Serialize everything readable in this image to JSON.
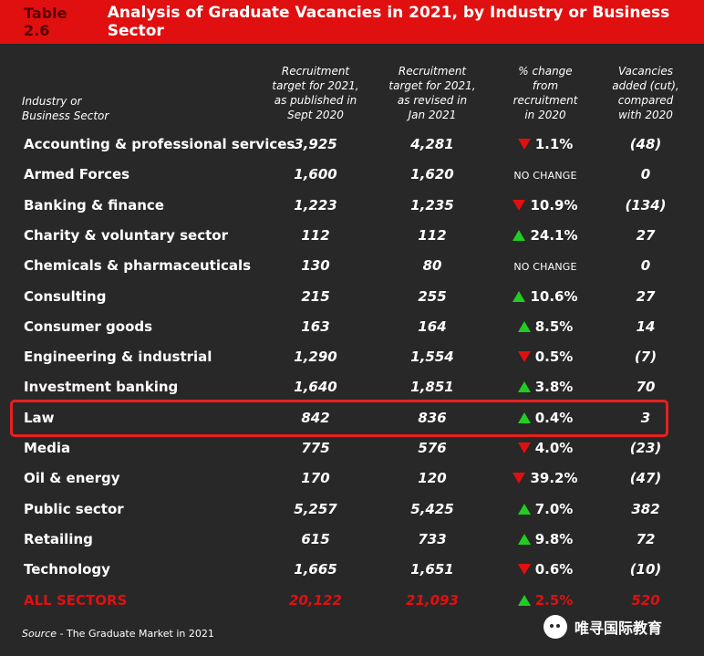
{
  "title": {
    "number": "Table 2.6",
    "text": "Analysis of Graduate Vacancies in 2021, by Industry or Business Sector"
  },
  "headers": {
    "industry": [
      "Industry or",
      "Business Sector"
    ],
    "published": [
      "Recruitment",
      "target for 2021,",
      "as published in",
      "Sept 2020"
    ],
    "revised": [
      "Recruitment",
      "target for 2021,",
      "as revised in",
      "Jan 2021"
    ],
    "change": [
      "% change",
      "from",
      "recruitment",
      "in 2020"
    ],
    "vacancies": [
      "Vacancies",
      "added (cut),",
      "compared",
      "with 2020"
    ]
  },
  "rows": [
    {
      "name": "Accounting & professional services",
      "published": "3,925",
      "revised": "4,281",
      "direction": "down",
      "change": "1.1%",
      "vacancies": "(48)"
    },
    {
      "name": "Armed Forces",
      "published": "1,600",
      "revised": "1,620",
      "direction": "none",
      "change": "NO CHANGE",
      "vacancies": "0"
    },
    {
      "name": "Banking & finance",
      "published": "1,223",
      "revised": "1,235",
      "direction": "down",
      "change": "10.9%",
      "vacancies": "(134)"
    },
    {
      "name": "Charity & voluntary sector",
      "published": "112",
      "revised": "112",
      "direction": "up",
      "change": "24.1%",
      "vacancies": "27"
    },
    {
      "name": "Chemicals & pharmaceuticals",
      "published": "130",
      "revised": "80",
      "direction": "none",
      "change": "NO CHANGE",
      "vacancies": "0"
    },
    {
      "name": "Consulting",
      "published": "215",
      "revised": "255",
      "direction": "up",
      "change": "10.6%",
      "vacancies": "27"
    },
    {
      "name": "Consumer goods",
      "published": "163",
      "revised": "164",
      "direction": "up",
      "change": "8.5%",
      "vacancies": "14"
    },
    {
      "name": "Engineering & industrial",
      "published": "1,290",
      "revised": "1,554",
      "direction": "down",
      "change": "0.5%",
      "vacancies": "(7)"
    },
    {
      "name": "Investment banking",
      "published": "1,640",
      "revised": "1,851",
      "direction": "up",
      "change": "3.8%",
      "vacancies": "70"
    },
    {
      "name": "Law",
      "published": "842",
      "revised": "836",
      "direction": "up",
      "change": "0.4%",
      "vacancies": "3",
      "highlighted": true
    },
    {
      "name": "Media",
      "published": "775",
      "revised": "576",
      "direction": "down",
      "change": "4.0%",
      "vacancies": "(23)"
    },
    {
      "name": "Oil & energy",
      "published": "170",
      "revised": "120",
      "direction": "down",
      "change": "39.2%",
      "vacancies": "(47)"
    },
    {
      "name": "Public sector",
      "published": "5,257",
      "revised": "5,425",
      "direction": "up",
      "change": "7.0%",
      "vacancies": "382"
    },
    {
      "name": "Retailing",
      "published": "615",
      "revised": "733",
      "direction": "up",
      "change": "9.8%",
      "vacancies": "72"
    },
    {
      "name": "Technology",
      "published": "1,665",
      "revised": "1,651",
      "direction": "down",
      "change": "0.6%",
      "vacancies": "(10)"
    }
  ],
  "total": {
    "name": "ALL SECTORS",
    "published": "20,122",
    "revised": "21,093",
    "direction": "up",
    "change": "2.5%",
    "vacancies": "520"
  },
  "source": {
    "label": "Source",
    "text": " - The Graduate Market in 2021"
  },
  "watermark": {
    "text": "唯寻国际教育",
    "icon": "wechat-icon"
  },
  "colors": {
    "accent_red": "#e01010",
    "up_green": "#22cc22",
    "background": "#282828"
  }
}
